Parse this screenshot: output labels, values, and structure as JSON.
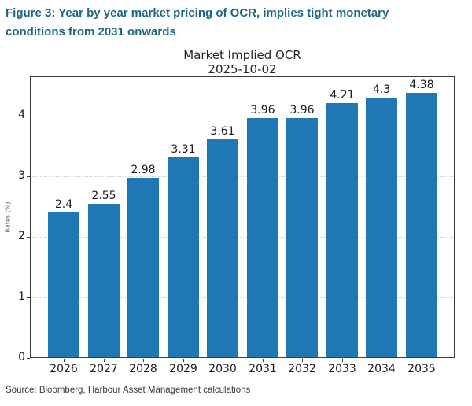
{
  "caption": {
    "line1": "Figure 3: Year by year market pricing of OCR, implies tight monetary",
    "line2": "conditions from 2031 onwards"
  },
  "chart_data": {
    "type": "bar",
    "title": "Market Implied OCR",
    "subtitle": "2025-10-02",
    "categories": [
      "2026",
      "2027",
      "2028",
      "2029",
      "2030",
      "2031",
      "2032",
      "2033",
      "2034",
      "2035"
    ],
    "values": [
      2.4,
      2.55,
      2.98,
      3.31,
      3.61,
      3.96,
      3.96,
      4.21,
      4.3,
      4.38
    ],
    "xlabel": "",
    "ylabel": "Rates (%)",
    "ylim": [
      0,
      4.65
    ],
    "yticks": [
      0,
      1,
      2,
      3,
      4
    ],
    "grid": true,
    "legend": false,
    "bar_color": "#1f77b4"
  },
  "source": "Source: Bloomberg, Harbour Asset Management calculations",
  "colors": {
    "caption_teal": "#1b6880",
    "bar_blue": "#1f77b4",
    "axis": "#3c3c3c",
    "tick_text": "#1a1a1a",
    "grid": "#cfcfcf",
    "ylabel_gray": "#595959",
    "source_text": "#3a3a3a"
  }
}
